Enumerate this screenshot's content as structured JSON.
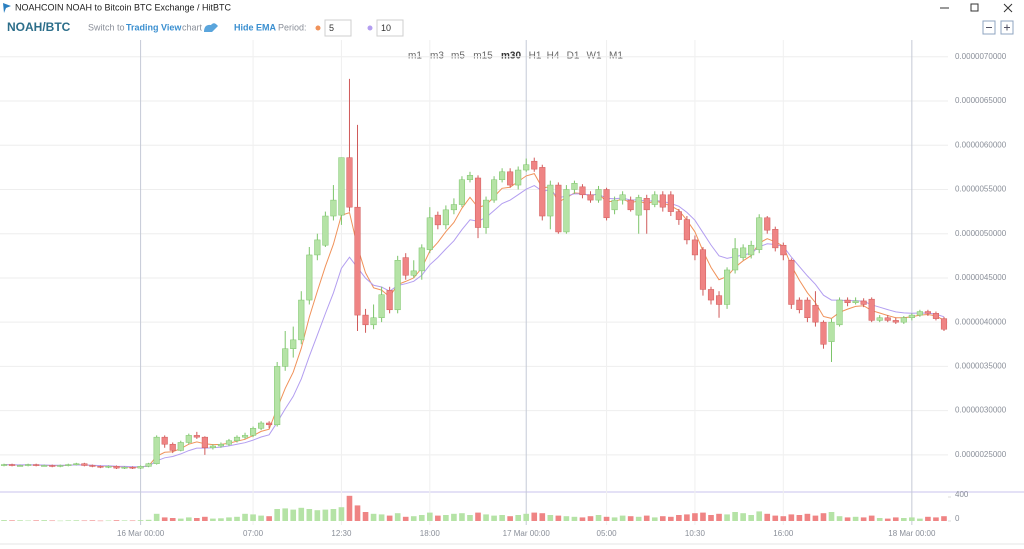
{
  "window_title": "NOAHCOIN NOAH to Bitcoin BTC Exchange / HitBTC",
  "toolbar": {
    "pair": "NOAH/BTC",
    "switch_prefix": "Switch to",
    "switch_link": "Trading View",
    "switch_suffix": "chart",
    "ema_toggle": "Hide EMA",
    "period_label": "Period:",
    "ema": [
      {
        "period": 5,
        "color": "#f0925a"
      },
      {
        "period": 10,
        "color": "#b39ef0"
      }
    ],
    "timeframes": [
      "m1",
      "m3",
      "m5",
      "m15",
      "m30",
      "H1",
      "H4",
      "D1",
      "W1",
      "M1"
    ],
    "active_timeframe": 4
  },
  "chart_data": {
    "type": "candlestick",
    "categories": [
      null,
      null,
      null,
      null,
      null,
      null,
      null,
      null,
      null,
      null,
      null,
      null,
      null,
      null,
      null,
      null,
      null,
      "16 Mar 00:00",
      null,
      null,
      null,
      null,
      null,
      null,
      null,
      null,
      null,
      null,
      null,
      null,
      null,
      "07:00",
      null,
      null,
      null,
      null,
      null,
      null,
      null,
      null,
      null,
      null,
      "12:30",
      null,
      null,
      null,
      null,
      null,
      null,
      null,
      null,
      null,
      null,
      "18:00",
      null,
      null,
      null,
      null,
      null,
      null,
      null,
      null,
      null,
      null,
      null,
      "17 Mar 00:00",
      null,
      null,
      null,
      null,
      null,
      null,
      null,
      null,
      null,
      "05:00",
      null,
      null,
      null,
      null,
      null,
      null,
      null,
      null,
      null,
      null,
      "10:30",
      null,
      null,
      null,
      null,
      null,
      null,
      null,
      null,
      null,
      null,
      "16:00",
      null,
      null,
      null,
      null,
      null,
      null,
      null,
      null,
      null,
      null,
      null,
      null,
      null,
      null,
      null,
      "18 Mar 00:00",
      null,
      null,
      null,
      null
    ],
    "open": [
      2.38e-06,
      2.39e-06,
      2.38e-06,
      2.38e-06,
      2.39e-06,
      2.38e-06,
      2.38e-06,
      2.37e-06,
      2.38e-06,
      2.39e-06,
      2.4e-06,
      2.38e-06,
      2.37e-06,
      2.36e-06,
      2.37e-06,
      2.35e-06,
      2.36e-06,
      2.35e-06,
      2.37e-06,
      2.4e-06,
      2.7e-06,
      2.62e-06,
      2.55e-06,
      2.64e-06,
      2.72e-06,
      2.7e-06,
      2.58e-06,
      2.6e-06,
      2.62e-06,
      2.66e-06,
      2.7e-06,
      2.72e-06,
      2.8e-06,
      2.86e-06,
      2.84e-06,
      3.5e-06,
      3.7e-06,
      3.8e-06,
      4.25e-06,
      4.76e-06,
      4.87e-06,
      5.2e-06,
      5.21e-06,
      5.86e-06,
      5.3e-06,
      4.08e-06,
      3.97e-06,
      4.05e-06,
      4.36e-06,
      4.14e-06,
      4.73e-06,
      4.53e-06,
      4.58e-06,
      4.82e-06,
      5.21e-06,
      5.1e-06,
      5.27e-06,
      5.33e-06,
      5.61e-06,
      5.63e-06,
      5.07e-06,
      5.38e-06,
      5.61e-06,
      5.7e-06,
      5.55e-06,
      5.72e-06,
      5.82e-06,
      5.75e-06,
      5.2e-06,
      5.55e-06,
      5.02e-06,
      5.5e-06,
      5.53e-06,
      5.44e-06,
      5.38e-06,
      5.5e-06,
      5.27e-06,
      5.38e-06,
      5.38e-06,
      5.21e-06,
      5.4e-06,
      5.33e-06,
      5.44e-06,
      5.44e-06,
      5.25e-06,
      5.16e-06,
      4.93e-06,
      4.82e-06,
      4.37e-06,
      4.3e-06,
      4.2e-06,
      4.59e-06,
      4.73e-06,
      4.76e-06,
      4.82e-06,
      5.18e-06,
      5.05e-06,
      4.87e-06,
      4.7e-06,
      4.25e-06,
      4.25e-06,
      4.19e-06,
      4e-06,
      3.78e-06,
      3.97e-06,
      4.25e-06,
      4.22e-06,
      4.24e-06,
      4.26e-06,
      4.02e-06,
      4.05e-06,
      4.02e-06,
      4e-06,
      4.05e-06,
      4.08e-06,
      4.12e-06,
      4.1e-06,
      4.04e-06
    ],
    "high": [
      2.4e-06,
      2.4e-06,
      2.39e-06,
      2.4e-06,
      2.4e-06,
      2.39e-06,
      2.39e-06,
      2.39e-06,
      2.4e-06,
      2.41e-06,
      2.41e-06,
      2.39e-06,
      2.38e-06,
      2.38e-06,
      2.38e-06,
      2.37e-06,
      2.37e-06,
      2.38e-06,
      2.41e-06,
      2.72e-06,
      2.72e-06,
      2.64e-06,
      2.66e-06,
      2.74e-06,
      2.76e-06,
      2.71e-06,
      2.62e-06,
      2.64e-06,
      2.68e-06,
      2.72e-06,
      2.75e-06,
      2.82e-06,
      2.88e-06,
      2.88e-06,
      3.55e-06,
      3.9e-06,
      3.95e-06,
      4.35e-06,
      4.85e-06,
      5e-06,
      5.25e-06,
      5.55e-06,
      5.86e-06,
      6.75e-06,
      6.23e-06,
      4.15e-06,
      4.2e-06,
      4.4e-06,
      4.4e-06,
      4.75e-06,
      4.78e-06,
      4.7e-06,
      4.88e-06,
      5.3e-06,
      5.25e-06,
      5.32e-06,
      5.4e-06,
      5.65e-06,
      5.7e-06,
      5.66e-06,
      5.42e-06,
      5.65e-06,
      5.74e-06,
      5.74e-06,
      5.76e-06,
      5.85e-06,
      5.86e-06,
      5.78e-06,
      5.6e-06,
      5.58e-06,
      5.55e-06,
      5.6e-06,
      5.56e-06,
      5.48e-06,
      5.54e-06,
      5.52e-06,
      5.42e-06,
      5.48e-06,
      5.42e-06,
      5.44e-06,
      5.44e-06,
      5.48e-06,
      5.48e-06,
      5.48e-06,
      5.28e-06,
      5.2e-06,
      4.98e-06,
      4.85e-06,
      4.4e-06,
      4.35e-06,
      4.62e-06,
      4.95e-06,
      4.88e-06,
      4.92e-06,
      5.22e-06,
      5.2e-06,
      5.08e-06,
      4.9e-06,
      4.72e-06,
      4.28e-06,
      4.28e-06,
      4.35e-06,
      4.02e-06,
      4.04e-06,
      4.28e-06,
      4.28e-06,
      4.28e-06,
      4.27e-06,
      4.28e-06,
      4.08e-06,
      4.08e-06,
      4.05e-06,
      4.07e-06,
      4.1e-06,
      4.14e-06,
      4.14e-06,
      4.12e-06,
      4.06e-06
    ],
    "low": [
      2.37e-06,
      2.37e-06,
      2.37e-06,
      2.37e-06,
      2.37e-06,
      2.37e-06,
      2.36e-06,
      2.36e-06,
      2.37e-06,
      2.38e-06,
      2.37e-06,
      2.36e-06,
      2.35e-06,
      2.35e-06,
      2.34e-06,
      2.34e-06,
      2.34e-06,
      2.34e-06,
      2.36e-06,
      2.39e-06,
      2.58e-06,
      2.52e-06,
      2.54e-06,
      2.62e-06,
      2.68e-06,
      2.5e-06,
      2.56e-06,
      2.58e-06,
      2.6e-06,
      2.64e-06,
      2.68e-06,
      2.7e-06,
      2.78e-06,
      2.8e-06,
      2.82e-06,
      3.45e-06,
      3.6e-06,
      3.75e-06,
      4.2e-06,
      4.7e-06,
      4.85e-06,
      5.15e-06,
      5.1e-06,
      5.25e-06,
      3.9e-06,
      3.88e-06,
      3.92e-06,
      4e-06,
      4.1e-06,
      4.1e-06,
      4.48e-06,
      4.5e-06,
      4.48e-06,
      4.78e-06,
      5.05e-06,
      5.05e-06,
      5.22e-06,
      5.3e-06,
      5.58e-06,
      4.95e-06,
      5e-06,
      5.35e-06,
      5.58e-06,
      5.52e-06,
      5.5e-06,
      5.7e-06,
      5.7e-06,
      5.15e-06,
      5.05e-06,
      5e-06,
      5e-06,
      5.45e-06,
      5.4e-06,
      5.35e-06,
      5.35e-06,
      5.15e-06,
      5.22e-06,
      5.33e-06,
      5.25e-06,
      5e-06,
      5e-06,
      5.3e-06,
      5.25e-06,
      5.2e-06,
      5.1e-06,
      4.88e-06,
      4.7e-06,
      4.3e-06,
      4.2e-06,
      4.05e-06,
      4.15e-06,
      4.55e-06,
      4.7e-06,
      4.72e-06,
      4.78e-06,
      5e-06,
      4.8e-06,
      4.7e-06,
      4.15e-06,
      4.1e-06,
      4e-06,
      3.95e-06,
      3.7e-06,
      3.55e-06,
      3.95e-06,
      4.18e-06,
      4.2e-06,
      4.17e-06,
      4e-06,
      4e-06,
      4e-06,
      3.98e-06,
      3.98e-06,
      4.02e-06,
      4.06e-06,
      4.07e-06,
      4.02e-06,
      3.9e-06
    ],
    "close": [
      2.39e-06,
      2.38e-06,
      2.38e-06,
      2.39e-06,
      2.38e-06,
      2.38e-06,
      2.37e-06,
      2.38e-06,
      2.39e-06,
      2.4e-06,
      2.38e-06,
      2.37e-06,
      2.36e-06,
      2.37e-06,
      2.35e-06,
      2.36e-06,
      2.35e-06,
      2.37e-06,
      2.4e-06,
      2.7e-06,
      2.62e-06,
      2.55e-06,
      2.64e-06,
      2.72e-06,
      2.7e-06,
      2.58e-06,
      2.6e-06,
      2.62e-06,
      2.66e-06,
      2.7e-06,
      2.72e-06,
      2.8e-06,
      2.86e-06,
      2.84e-06,
      3.5e-06,
      3.7e-06,
      3.8e-06,
      4.25e-06,
      4.76e-06,
      4.93e-06,
      5.2e-06,
      5.38e-06,
      5.86e-06,
      5.3e-06,
      4.08e-06,
      3.97e-06,
      4.05e-06,
      4.31e-06,
      4.14e-06,
      4.7e-06,
      4.53e-06,
      4.58e-06,
      4.84e-06,
      5.18e-06,
      5.1e-06,
      5.27e-06,
      5.33e-06,
      5.61e-06,
      5.66e-06,
      5.07e-06,
      5.38e-06,
      5.61e-06,
      5.7e-06,
      5.55e-06,
      5.72e-06,
      5.78e-06,
      5.73e-06,
      5.2e-06,
      5.55e-06,
      5.02e-06,
      5.5e-06,
      5.57e-06,
      5.44e-06,
      5.38e-06,
      5.5e-06,
      5.18e-06,
      5.38e-06,
      5.44e-06,
      5.27e-06,
      5.41e-06,
      5.27e-06,
      5.44e-06,
      5.3e-06,
      5.25e-06,
      5.16e-06,
      4.93e-06,
      4.76e-06,
      4.37e-06,
      4.25e-06,
      4.2e-06,
      4.59e-06,
      4.83e-06,
      4.84e-06,
      4.87e-06,
      5.18e-06,
      5.04e-06,
      4.84e-06,
      4.76e-06,
      4.2e-06,
      4.14e-06,
      4.05e-06,
      4e-06,
      3.75e-06,
      4e-06,
      4.25e-06,
      4.22e-06,
      4.24e-06,
      4.2e-06,
      4.02e-06,
      4.05e-06,
      4.02e-06,
      4e-06,
      4.05e-06,
      4.08e-06,
      4.12e-06,
      4.1e-06,
      4.04e-06,
      3.92e-06
    ],
    "volume": [
      15,
      10,
      12,
      8,
      10,
      14,
      8,
      6,
      10,
      12,
      8,
      10,
      6,
      8,
      12,
      10,
      8,
      14,
      20,
      120,
      60,
      50,
      40,
      60,
      50,
      70,
      40,
      45,
      60,
      70,
      120,
      110,
      90,
      80,
      200,
      210,
      190,
      220,
      200,
      180,
      190,
      200,
      230,
      420,
      260,
      150,
      120,
      110,
      90,
      130,
      70,
      80,
      100,
      140,
      90,
      100,
      120,
      130,
      100,
      140,
      110,
      90,
      100,
      80,
      100,
      120,
      140,
      130,
      100,
      90,
      80,
      70,
      60,
      80,
      100,
      70,
      60,
      90,
      80,
      70,
      90,
      60,
      80,
      70,
      100,
      110,
      130,
      140,
      100,
      120,
      110,
      150,
      130,
      100,
      160,
      120,
      90,
      80,
      110,
      100,
      120,
      90,
      130,
      150,
      80,
      60,
      70,
      60,
      90,
      50,
      40,
      60,
      50,
      60,
      40,
      70,
      60,
      80
    ],
    "up_color": "#b5e3a6",
    "down_color": "#ef8484",
    "ylim": [
      2.08e-06,
      7.19e-06
    ],
    "yticks": [
      {
        "value": 2.5e-06,
        "label": "0.0000025000"
      },
      {
        "value": 3e-06,
        "label": "0.0000030000"
      },
      {
        "value": 3.5e-06,
        "label": "0.0000035000"
      },
      {
        "value": 4e-06,
        "label": "0.0000040000"
      },
      {
        "value": 4.5e-06,
        "label": "0.0000045000"
      },
      {
        "value": 5e-06,
        "label": "0.0000050000"
      },
      {
        "value": 5.5e-06,
        "label": "0.0000055000"
      },
      {
        "value": 6e-06,
        "label": "0.0000060000"
      },
      {
        "value": 6.5e-06,
        "label": "0.0000065000"
      },
      {
        "value": 7e-06,
        "label": "0.0000070000"
      }
    ],
    "volume_ylim": [
      0,
      467
    ],
    "volume_yticks": [
      0,
      400
    ],
    "grid": true
  }
}
